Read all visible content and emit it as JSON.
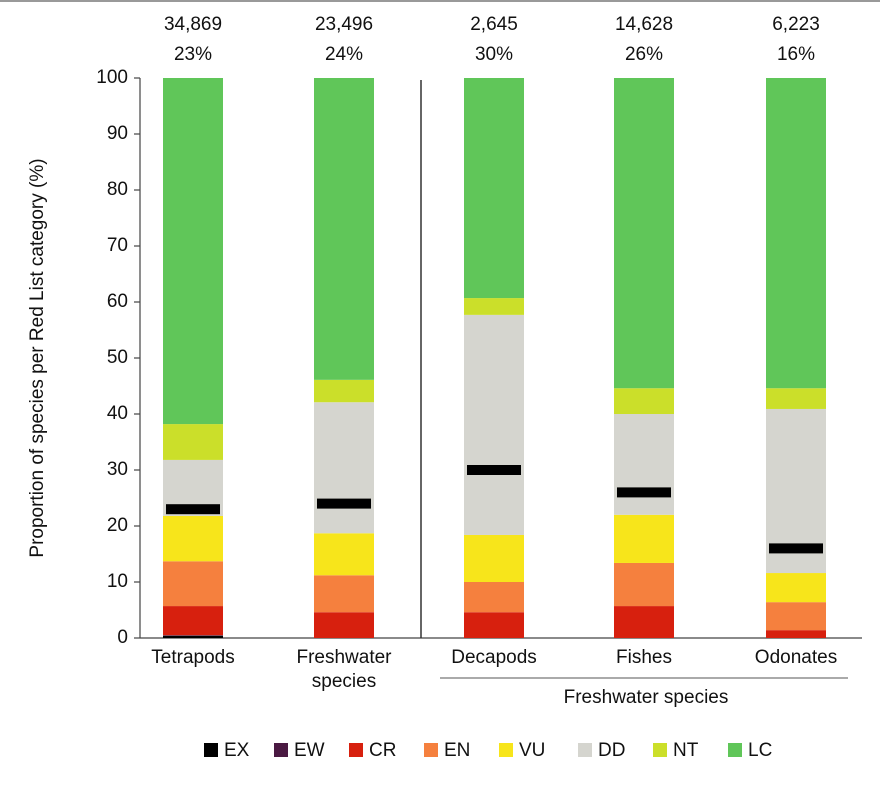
{
  "chart_data": {
    "type": "stacked_bar",
    "y_label": "Proportion of species per Red List category (%)",
    "categories": [
      "Tetrapods",
      "Freshwater species",
      "Decapods",
      "Fishes",
      "Odonates"
    ],
    "group_label": "Freshwater species",
    "series": [
      {
        "name": "EX",
        "color": "#000000",
        "values": [
          0.4,
          0,
          0,
          0,
          0
        ]
      },
      {
        "name": "EW",
        "color": "#4a1942",
        "values": [
          0.1,
          0,
          0,
          0,
          0
        ]
      },
      {
        "name": "CR",
        "color": "#d7200e",
        "values": [
          5.2,
          4.6,
          4.6,
          5.7,
          1.4
        ]
      },
      {
        "name": "EN",
        "color": "#f5803e",
        "values": [
          8.0,
          6.6,
          5.4,
          7.7,
          5.0
        ]
      },
      {
        "name": "VU",
        "color": "#f7e51b",
        "values": [
          8.1,
          7.5,
          8.4,
          8.6,
          5.2
        ]
      },
      {
        "name": "DD",
        "color": "#d5d5cf",
        "values": [
          10.0,
          23.4,
          39.3,
          18.0,
          29.3
        ]
      },
      {
        "name": "NT",
        "color": "#cbdf2a",
        "values": [
          6.4,
          4.0,
          3.0,
          4.6,
          3.7
        ]
      },
      {
        "name": "LC",
        "color": "#60c659",
        "values": [
          61.8,
          53.9,
          39.3,
          55.4,
          55.4
        ]
      }
    ],
    "species_counts": [
      34869,
      23496,
      2645,
      14628,
      6223
    ],
    "species_count_labels": [
      "34,869",
      "23,496",
      "2,645",
      "14,628",
      "6,223"
    ],
    "threatened_percent": [
      23,
      24,
      30,
      26,
      16
    ],
    "threatened_percent_labels": [
      "23%",
      "24%",
      "30%",
      "26%",
      "16%"
    ],
    "marker_color": "#000000",
    "ylim": [
      0,
      100
    ],
    "yticks": [
      0,
      10,
      20,
      30,
      40,
      50,
      60,
      70,
      80,
      90,
      100
    ],
    "grid": false
  }
}
